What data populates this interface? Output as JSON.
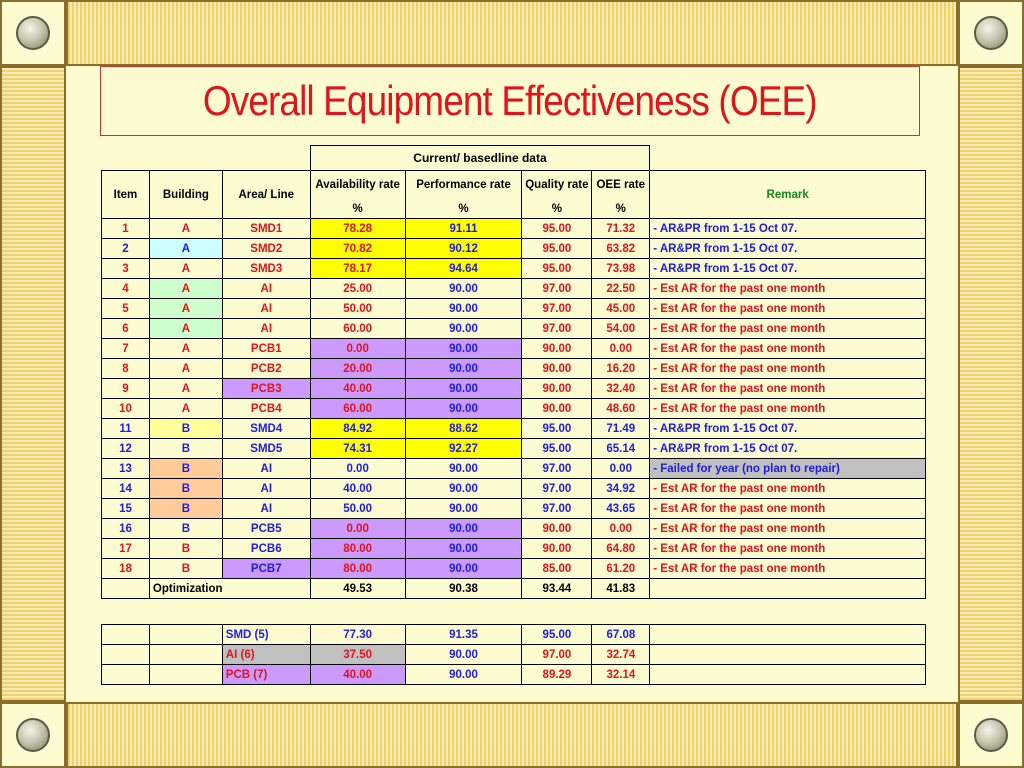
{
  "slide": {
    "title": "Overall Equipment Effectiveness (OEE)"
  },
  "colors": {
    "background": "#fdfbd0",
    "title": "#e0141c",
    "red_text": "#e0141c",
    "blue_text": "#1c1ce6",
    "green_text": "#148a1c",
    "yellow_fill": "#ffff00",
    "cyan_fill": "#ccffff",
    "green_fill": "#ccffcc",
    "purple_fill": "#cc99ff",
    "peach_fill": "#ffcc99",
    "light_yellow_fill": "#ffff99",
    "gray_fill": "#c0c0c0"
  },
  "table": {
    "group_header": "Current/ basedline data",
    "headers": {
      "item": "Item",
      "building": "Building",
      "area": "Area/ Line",
      "availability": "Availability rate",
      "performance": "Performance rate",
      "quality": "Quality rate",
      "oee": "OEE rate",
      "remark": "Remark",
      "unit": "%"
    },
    "rows": [
      {
        "item": "1",
        "building": "A",
        "area": "SMD1",
        "avail": "78.28",
        "perf": "91.11",
        "qual": "95.00",
        "oee": "71.32",
        "remark": "- AR&PR from 1-15 Oct 07.",
        "item_color": "red",
        "bld_fill": "",
        "area_color": "red",
        "ap_fill": "yellow",
        "data_color": "red",
        "remark_color": "blue"
      },
      {
        "item": "2",
        "building": "A",
        "area": "SMD2",
        "avail": "70.82",
        "perf": "90.12",
        "qual": "95.00",
        "oee": "63.82",
        "remark": "- AR&PR from 1-15 Oct 07.",
        "item_color": "blue",
        "bld_fill": "cyan",
        "area_color": "red",
        "ap_fill": "yellow",
        "data_color": "red",
        "remark_color": "blue"
      },
      {
        "item": "3",
        "building": "A",
        "area": "SMD3",
        "avail": "78.17",
        "perf": "94.64",
        "qual": "95.00",
        "oee": "73.98",
        "remark": "- AR&PR from 1-15 Oct 07.",
        "item_color": "red",
        "bld_fill": "",
        "area_color": "red",
        "ap_fill": "yellow",
        "data_color": "red",
        "remark_color": "blue"
      },
      {
        "item": "4",
        "building": "A",
        "area": "AI",
        "avail": "25.00",
        "perf": "90.00",
        "qual": "97.00",
        "oee": "22.50",
        "remark": "- Est AR for the past one month",
        "item_color": "red",
        "bld_fill": "green",
        "area_color": "red",
        "ap_fill": "",
        "data_color": "red",
        "remark_color": "red"
      },
      {
        "item": "5",
        "building": "A",
        "area": "AI",
        "avail": "50.00",
        "perf": "90.00",
        "qual": "97.00",
        "oee": "45.00",
        "remark": "- Est AR for the past one month",
        "item_color": "red",
        "bld_fill": "green",
        "area_color": "red",
        "ap_fill": "",
        "data_color": "red",
        "remark_color": "red"
      },
      {
        "item": "6",
        "building": "A",
        "area": "AI",
        "avail": "60.00",
        "perf": "90.00",
        "qual": "97.00",
        "oee": "54.00",
        "remark": "- Est AR for the past one month",
        "item_color": "red",
        "bld_fill": "green",
        "area_color": "red",
        "ap_fill": "",
        "data_color": "red",
        "remark_color": "red"
      },
      {
        "item": "7",
        "building": "A",
        "area": "PCB1",
        "avail": "0.00",
        "perf": "90.00",
        "qual": "90.00",
        "oee": "0.00",
        "remark": "- Est AR for the past one month",
        "item_color": "red",
        "bld_fill": "",
        "area_color": "red",
        "ap_fill": "purple",
        "data_color": "red",
        "remark_color": "red"
      },
      {
        "item": "8",
        "building": "A",
        "area": "PCB2",
        "avail": "20.00",
        "perf": "90.00",
        "qual": "90.00",
        "oee": "16.20",
        "remark": "- Est AR for the past one month",
        "item_color": "red",
        "bld_fill": "",
        "area_color": "red",
        "ap_fill": "purple",
        "data_color": "red",
        "remark_color": "red"
      },
      {
        "item": "9",
        "building": "A",
        "area": "PCB3",
        "avail": "40.00",
        "perf": "90.00",
        "qual": "90.00",
        "oee": "32.40",
        "remark": "- Est AR for the past one month",
        "item_color": "red",
        "bld_fill": "",
        "area_color": "red",
        "area_fill": "purple",
        "ap_fill": "purple",
        "data_color": "red",
        "remark_color": "red"
      },
      {
        "item": "10",
        "building": "A",
        "area": "PCB4",
        "avail": "60.00",
        "perf": "90.00",
        "qual": "90.00",
        "oee": "48.60",
        "remark": "- Est AR for the past one month",
        "item_color": "red",
        "bld_fill": "",
        "area_color": "red",
        "ap_fill": "purple",
        "data_color": "red",
        "remark_color": "red"
      },
      {
        "item": "11",
        "building": "B",
        "area": "SMD4",
        "avail": "84.92",
        "perf": "88.62",
        "qual": "95.00",
        "oee": "71.49",
        "remark": "- AR&PR from 1-15 Oct 07.",
        "item_color": "blue",
        "bld_fill": "lightyellow",
        "area_color": "blue",
        "ap_fill": "yellow",
        "data_color": "blue",
        "remark_color": "blue"
      },
      {
        "item": "12",
        "building": "B",
        "area": "SMD5",
        "avail": "74.31",
        "perf": "92.27",
        "qual": "95.00",
        "oee": "65.14",
        "remark": "- AR&PR from 1-15 Oct 07.",
        "item_color": "blue",
        "bld_fill": "",
        "area_color": "blue",
        "ap_fill": "yellow",
        "data_color": "blue",
        "remark_color": "blue"
      },
      {
        "item": "13",
        "building": "B",
        "area": "AI",
        "avail": "0.00",
        "perf": "90.00",
        "qual": "97.00",
        "oee": "0.00",
        "remark": "- Failed for year (no plan to repair)",
        "item_color": "blue",
        "bld_fill": "peach",
        "area_color": "blue",
        "ap_fill": "",
        "data_color": "blue",
        "remark_color": "blue",
        "remark_fill": "gray"
      },
      {
        "item": "14",
        "building": "B",
        "area": "AI",
        "avail": "40.00",
        "perf": "90.00",
        "qual": "97.00",
        "oee": "34.92",
        "remark": "- Est AR for the past one month",
        "item_color": "blue",
        "bld_fill": "peach",
        "area_color": "blue",
        "ap_fill": "",
        "data_color": "blue",
        "remark_color": "red"
      },
      {
        "item": "15",
        "building": "B",
        "area": "AI",
        "avail": "50.00",
        "perf": "90.00",
        "qual": "97.00",
        "oee": "43.65",
        "remark": "- Est AR for the past one month",
        "item_color": "blue",
        "bld_fill": "peach",
        "area_color": "blue",
        "ap_fill": "",
        "data_color": "blue",
        "remark_color": "red"
      },
      {
        "item": "16",
        "building": "B",
        "area": "PCB5",
        "avail": "0.00",
        "perf": "90.00",
        "qual": "90.00",
        "oee": "0.00",
        "remark": "- Est AR for the past one month",
        "item_color": "blue",
        "bld_fill": "",
        "area_color": "blue",
        "ap_fill": "purple",
        "data_color": "red",
        "remark_color": "red"
      },
      {
        "item": "17",
        "building": "B",
        "area": "PCB6",
        "avail": "80.00",
        "perf": "90.00",
        "qual": "90.00",
        "oee": "64.80",
        "remark": "- Est AR for the past one month",
        "item_color": "red",
        "bld_fill": "",
        "area_color": "blue",
        "ap_fill": "purple",
        "data_color": "red",
        "remark_color": "red"
      },
      {
        "item": "18",
        "building": "B",
        "area": "PCB7",
        "avail": "80.00",
        "perf": "90.00",
        "qual": "85.00",
        "oee": "61.20",
        "remark": "- Est AR for the past one month",
        "item_color": "red",
        "bld_fill": "",
        "area_color": "blue",
        "area_fill": "purple",
        "ap_fill": "purple",
        "data_color": "red",
        "remark_color": "red"
      }
    ],
    "optimization": {
      "label": "Optimization",
      "avail": "49.53",
      "perf": "90.38",
      "qual": "93.44",
      "oee": "41.83"
    }
  },
  "summary": {
    "rows": [
      {
        "area": "SMD (5)",
        "avail": "77.30",
        "perf": "91.35",
        "qual": "95.00",
        "oee": "67.08",
        "color": "blue",
        "fill": ""
      },
      {
        "area": "AI (6)",
        "avail": "37.50",
        "perf": "90.00",
        "qual": "97.00",
        "oee": "32.74",
        "color": "red",
        "fill": "gray"
      },
      {
        "area": "PCB (7)",
        "avail": "40.00",
        "perf": "90.00",
        "qual": "89.29",
        "oee": "32.14",
        "color": "red",
        "fill": "purple"
      }
    ]
  }
}
